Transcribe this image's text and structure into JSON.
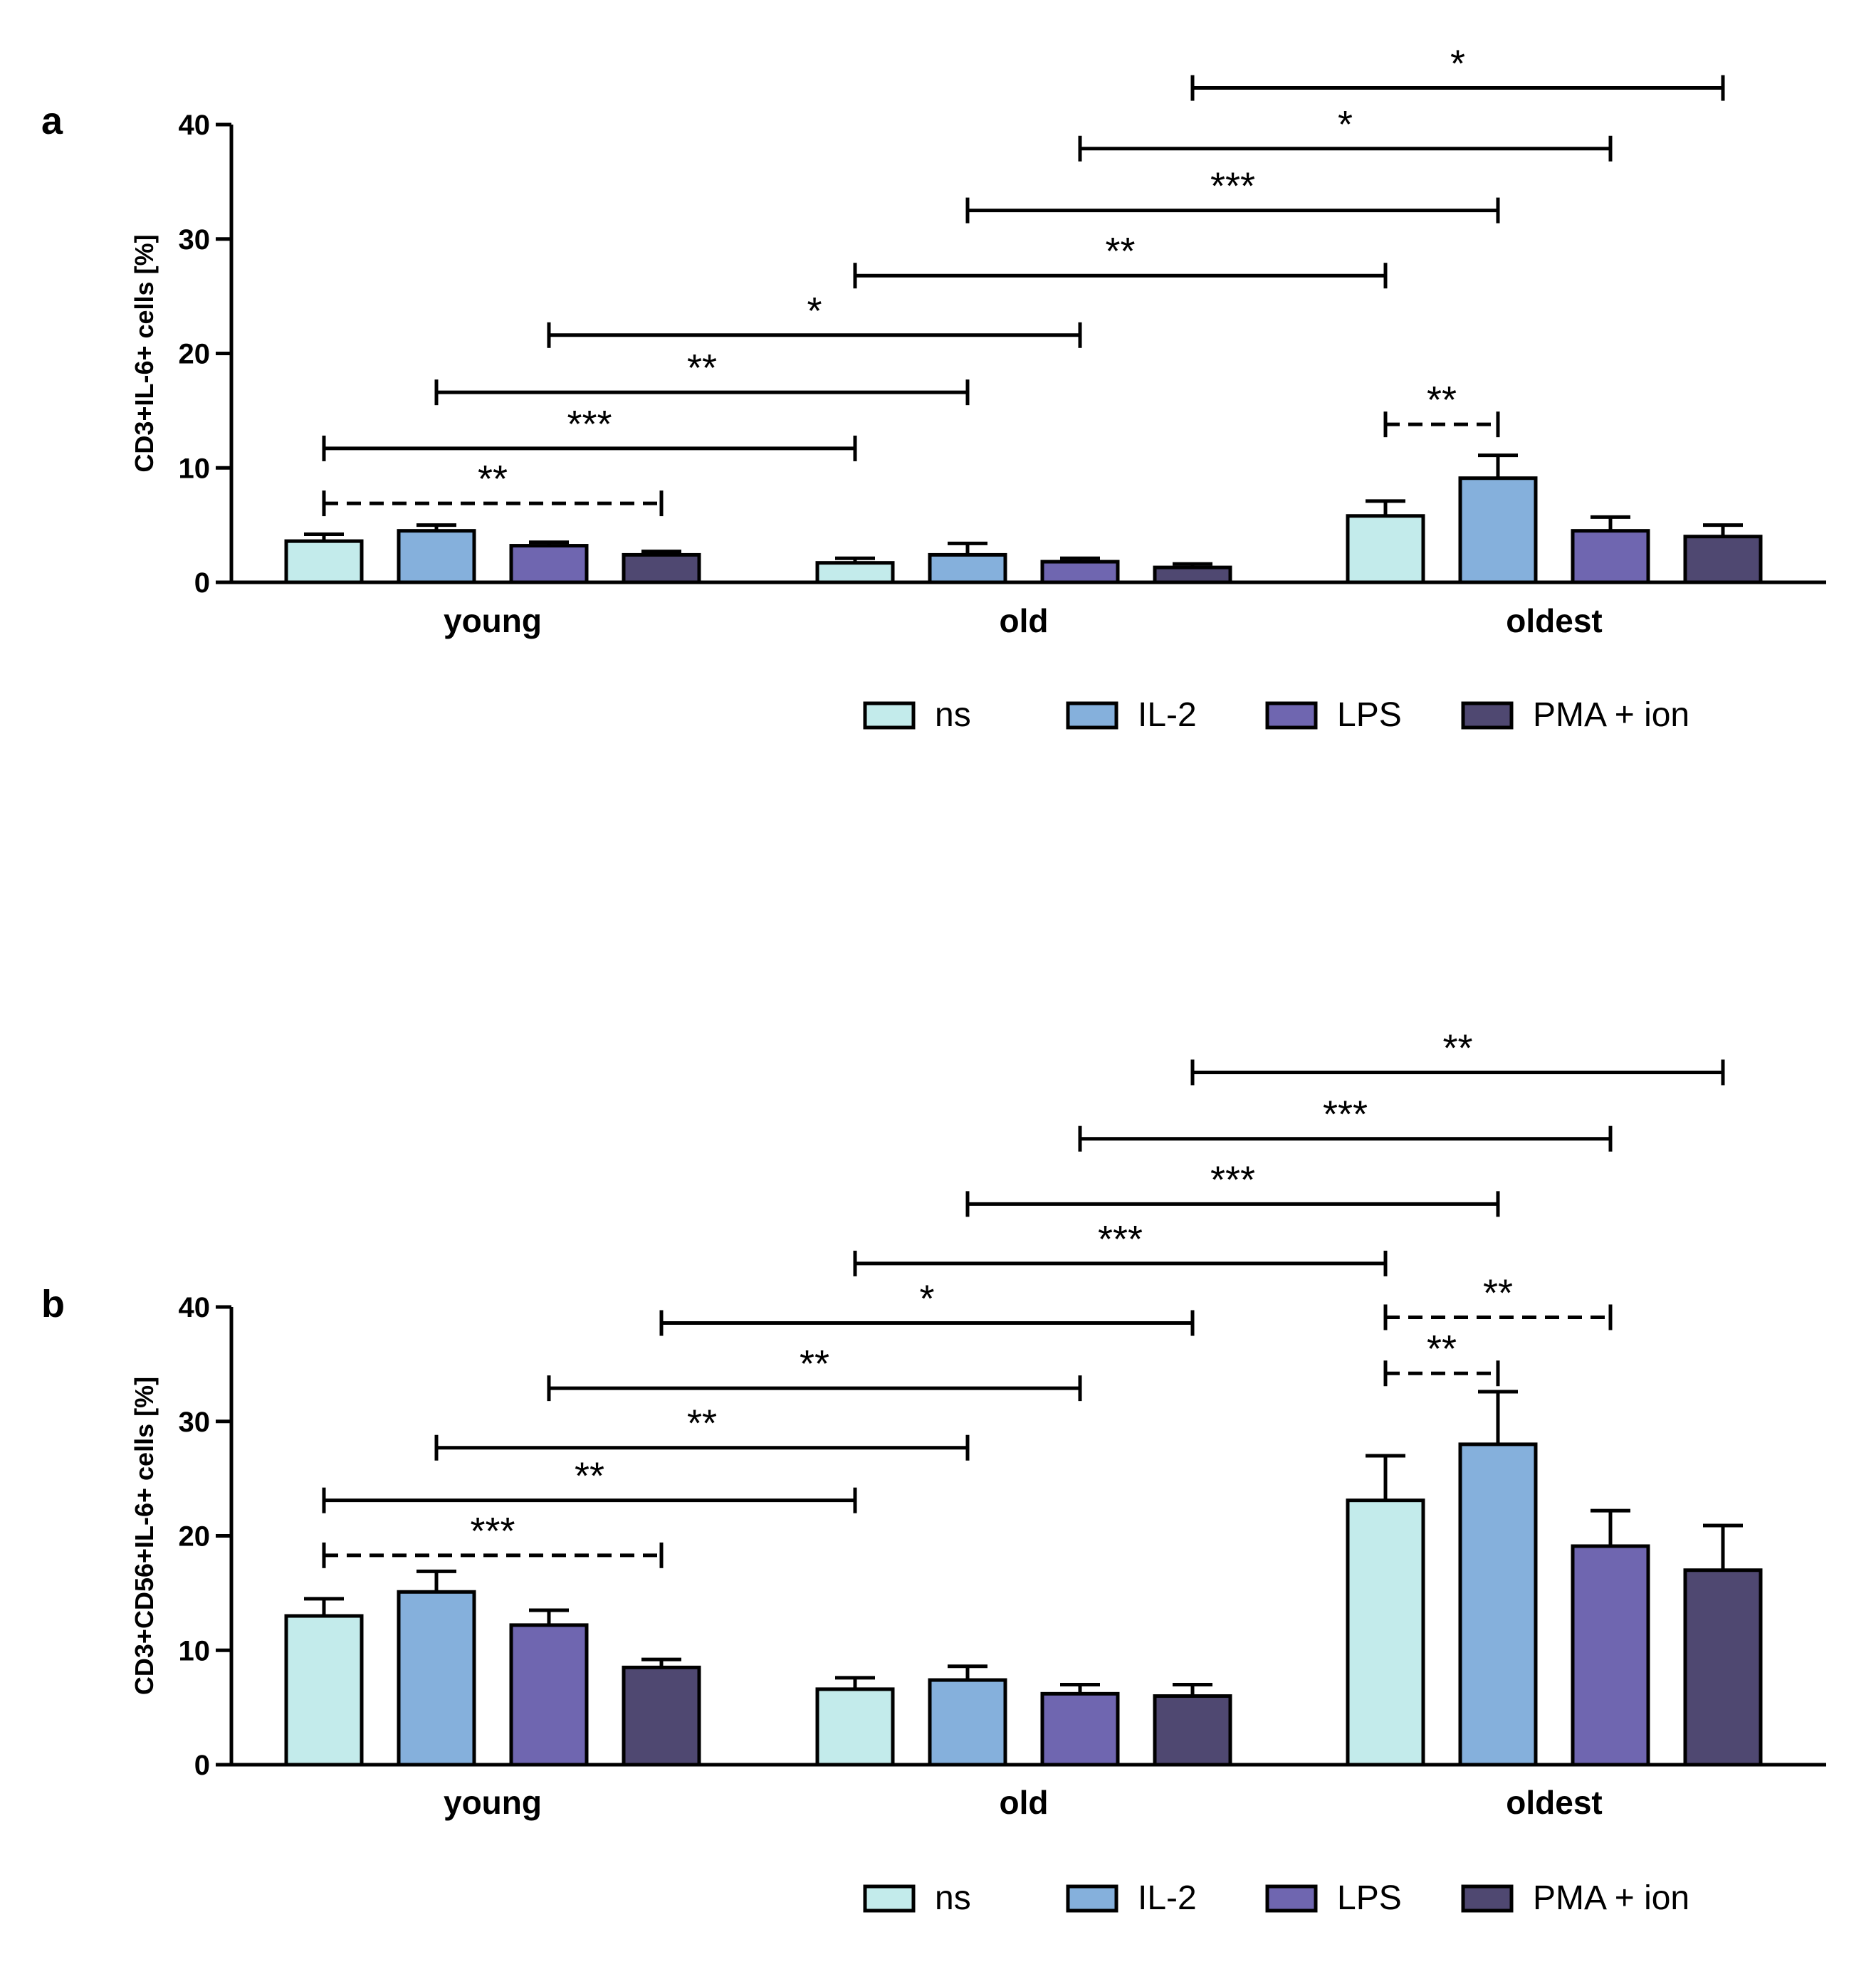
{
  "legend_colors": {
    "ns": "#c3ebeb",
    "IL-2": "#85b0dc",
    "LPS": "#6f66b0",
    "PMA + ion": "#4f4871"
  },
  "chart_data": [
    {
      "type": "bar",
      "panel_label": "a",
      "ylabel": "CD3+IL-6+ cells [%]",
      "ylim": [
        0,
        40
      ],
      "yticks": [
        "0",
        "10",
        "20",
        "30",
        "40"
      ],
      "categories": [
        "young",
        "old",
        "oldest"
      ],
      "series": [
        {
          "name": "ns",
          "values": [
            3.6,
            1.7,
            5.8
          ],
          "errors": [
            0.6,
            0.4,
            1.3
          ]
        },
        {
          "name": "IL-2",
          "values": [
            4.5,
            2.4,
            9.1
          ],
          "errors": [
            0.5,
            1.0,
            2.0
          ]
        },
        {
          "name": "LPS",
          "values": [
            3.2,
            1.8,
            4.5
          ],
          "errors": [
            0.3,
            0.3,
            1.2
          ]
        },
        {
          "name": "PMA + ion",
          "values": [
            2.4,
            1.3,
            4.0
          ],
          "errors": [
            0.3,
            0.3,
            1.0
          ]
        }
      ],
      "significance": [
        {
          "from": [
            0,
            0
          ],
          "to": [
            0,
            3
          ],
          "y": 6.9,
          "label": "**",
          "dashed": true
        },
        {
          "from": [
            0,
            0
          ],
          "to": [
            1,
            0
          ],
          "y": 11.7,
          "label": "***",
          "dashed": false
        },
        {
          "from": [
            0,
            1
          ],
          "to": [
            1,
            1
          ],
          "y": 16.6,
          "label": "**",
          "dashed": false
        },
        {
          "from": [
            0,
            2
          ],
          "to": [
            1,
            2
          ],
          "y": 21.6,
          "label": "*",
          "dashed": false
        },
        {
          "from": [
            1,
            0
          ],
          "to": [
            2,
            0
          ],
          "y": 26.8,
          "label": "**",
          "dashed": false
        },
        {
          "from": [
            1,
            1
          ],
          "to": [
            2,
            1
          ],
          "y": 32.5,
          "label": "***",
          "dashed": false
        },
        {
          "from": [
            1,
            2
          ],
          "to": [
            2,
            2
          ],
          "y": 37.9,
          "label": "*",
          "dashed": false
        },
        {
          "from": [
            1,
            3
          ],
          "to": [
            2,
            3
          ],
          "y": 43.2,
          "label": "*",
          "dashed": false
        },
        {
          "from": [
            2,
            0
          ],
          "to": [
            2,
            1
          ],
          "y": 13.8,
          "label": "**",
          "dashed": true
        }
      ],
      "legend": [
        "ns",
        "IL-2",
        "LPS",
        "PMA + ion"
      ]
    },
    {
      "type": "bar",
      "panel_label": "b",
      "ylabel": "CD3+CD56+IL-6+ cells [%]",
      "ylim": [
        0,
        40
      ],
      "yticks": [
        "0",
        "10",
        "20",
        "30",
        "40"
      ],
      "categories": [
        "young",
        "old",
        "oldest"
      ],
      "series": [
        {
          "name": "ns",
          "values": [
            13.0,
            6.6,
            23.1
          ],
          "errors": [
            1.5,
            1.0,
            3.9
          ]
        },
        {
          "name": "IL-2",
          "values": [
            15.1,
            7.4,
            28.0
          ],
          "errors": [
            1.8,
            1.2,
            4.6
          ]
        },
        {
          "name": "LPS",
          "values": [
            12.2,
            6.2,
            19.1
          ],
          "errors": [
            1.3,
            0.8,
            3.1
          ]
        },
        {
          "name": "PMA + ion",
          "values": [
            8.5,
            6.0,
            17.0
          ],
          "errors": [
            0.7,
            1.0,
            3.9
          ]
        }
      ],
      "significance": [
        {
          "from": [
            0,
            0
          ],
          "to": [
            0,
            3
          ],
          "y": 18.3,
          "label": "***",
          "dashed": true
        },
        {
          "from": [
            0,
            0
          ],
          "to": [
            1,
            0
          ],
          "y": 23.1,
          "label": "**",
          "dashed": false
        },
        {
          "from": [
            0,
            1
          ],
          "to": [
            1,
            1
          ],
          "y": 27.7,
          "label": "**",
          "dashed": false
        },
        {
          "from": [
            0,
            2
          ],
          "to": [
            1,
            2
          ],
          "y": 32.9,
          "label": "**",
          "dashed": false
        },
        {
          "from": [
            0,
            3
          ],
          "to": [
            1,
            3
          ],
          "y": 38.6,
          "label": "*",
          "dashed": false
        },
        {
          "from": [
            1,
            0
          ],
          "to": [
            2,
            0
          ],
          "y": 43.8,
          "label": "***",
          "dashed": false
        },
        {
          "from": [
            1,
            1
          ],
          "to": [
            2,
            1
          ],
          "y": 49.0,
          "label": "***",
          "dashed": false
        },
        {
          "from": [
            1,
            2
          ],
          "to": [
            2,
            2
          ],
          "y": 54.7,
          "label": "***",
          "dashed": false
        },
        {
          "from": [
            1,
            3
          ],
          "to": [
            2,
            3
          ],
          "y": 60.5,
          "label": "**",
          "dashed": false
        },
        {
          "from": [
            2,
            0
          ],
          "to": [
            2,
            1
          ],
          "y": 34.2,
          "label": "**",
          "dashed": true
        },
        {
          "from": [
            2,
            0
          ],
          "to": [
            2,
            2
          ],
          "y": 39.1,
          "label": "**",
          "dashed": true
        }
      ],
      "legend": [
        "ns",
        "IL-2",
        "LPS",
        "PMA + ion"
      ]
    }
  ]
}
